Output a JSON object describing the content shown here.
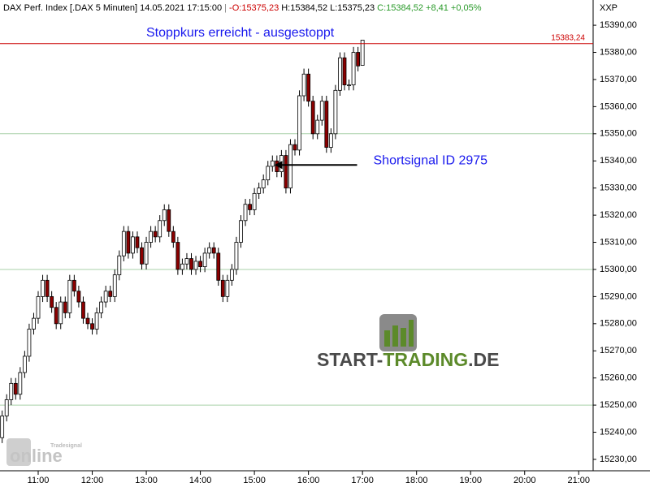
{
  "chart_data": {
    "type": "candlestick",
    "header": {
      "instrument": "DAX Perf. Index [.DAX  5 Minuten] 14.05.2021  17:15:00",
      "open": "-O:15375,23",
      "high": "H:15384,52",
      "low": "L:15375,23",
      "close": "C:15384,52",
      "change": "+8,41",
      "change_pct": "+0,05%"
    },
    "axis_label": "XXP",
    "x": [
      620,
      625,
      630,
      635,
      640,
      645,
      650,
      655,
      660,
      665,
      670,
      675,
      680,
      685,
      690,
      695,
      700,
      705,
      710,
      715,
      720,
      725,
      730,
      735,
      740,
      745,
      750,
      755,
      760,
      765,
      770,
      775,
      780,
      785,
      790,
      795,
      800,
      805,
      810,
      815,
      820,
      825,
      830,
      835,
      840,
      845,
      850,
      855,
      860,
      865,
      870,
      875,
      880,
      885,
      890,
      895,
      900,
      905,
      910,
      915,
      920,
      925,
      930,
      935,
      940,
      945,
      950,
      955,
      960,
      965,
      970,
      975,
      980,
      985,
      990,
      995,
      1000,
      1005,
      1010,
      1015,
      1020
    ],
    "open": [
      15238,
      15246,
      15252,
      15258,
      15254,
      15262,
      15268,
      15278,
      15282,
      15290,
      15296,
      15290,
      15286,
      15280,
      15288,
      15284,
      15296,
      15292,
      15288,
      15282,
      15280,
      15278,
      15284,
      15288,
      15292,
      15290,
      15298,
      15305,
      15314,
      15306,
      15312,
      15308,
      15302,
      15310,
      15314,
      15312,
      15318,
      15322,
      15314,
      15310,
      15300,
      15302,
      15304,
      15300,
      15303,
      15301,
      15306,
      15308,
      15306,
      15296,
      15290,
      15296,
      15300,
      15310,
      15318,
      15324,
      15322,
      15328,
      15330,
      15333,
      15338,
      15340,
      15336,
      15342,
      15330,
      15346,
      15344,
      15364,
      15372,
      15362,
      15350,
      15355,
      15362,
      15345,
      15350,
      15366,
      15378,
      15368,
      15368,
      15380,
      15375.23
    ],
    "high": [
      15248,
      15254,
      15260,
      15260,
      15264,
      15270,
      15280,
      15284,
      15292,
      15298,
      15298,
      15292,
      15288,
      15290,
      15290,
      15298,
      15298,
      15294,
      15290,
      15284,
      15282,
      15286,
      15290,
      15294,
      15294,
      15300,
      15307,
      15316,
      15316,
      15314,
      15314,
      15310,
      15312,
      15316,
      15316,
      15320,
      15324,
      15324,
      15316,
      15312,
      15304,
      15306,
      15306,
      15305,
      15305,
      15308,
      15310,
      15310,
      15308,
      15298,
      15298,
      15302,
      15312,
      15320,
      15326,
      15326,
      15330,
      15332,
      15335,
      15340,
      15342,
      15342,
      15344,
      15344,
      15348,
      15348,
      15366,
      15374,
      15374,
      15364,
      15357,
      15364,
      15364,
      15352,
      15368,
      15380,
      15380,
      15370,
      15382,
      15382,
      15384.52
    ],
    "low": [
      15236,
      15244,
      15250,
      15252,
      15252,
      15260,
      15266,
      15276,
      15280,
      15288,
      15288,
      15284,
      15278,
      15278,
      15282,
      15282,
      15290,
      15286,
      15280,
      15278,
      15276,
      15276,
      15282,
      15286,
      15288,
      15288,
      15296,
      15303,
      15304,
      15304,
      15306,
      15300,
      15300,
      15308,
      15310,
      15310,
      15316,
      15312,
      15308,
      15298,
      15298,
      15300,
      15298,
      15298,
      15299,
      15299,
      15304,
      15304,
      15294,
      15288,
      15288,
      15294,
      15298,
      15308,
      15316,
      15320,
      15320,
      15326,
      15328,
      15331,
      15336,
      15334,
      15334,
      15328,
      15328,
      15342,
      15342,
      15362,
      15360,
      15348,
      15348,
      15353,
      15343,
      15343,
      15348,
      15364,
      15366,
      15366,
      15366,
      15373,
      15375.23
    ],
    "close": [
      15246,
      15252,
      15258,
      15254,
      15262,
      15268,
      15278,
      15282,
      15290,
      15296,
      15290,
      15286,
      15280,
      15288,
      15284,
      15296,
      15292,
      15288,
      15282,
      15280,
      15278,
      15284,
      15288,
      15292,
      15290,
      15298,
      15305,
      15314,
      15306,
      15312,
      15308,
      15302,
      15310,
      15314,
      15312,
      15318,
      15322,
      15314,
      15310,
      15300,
      15302,
      15304,
      15300,
      15303,
      15301,
      15306,
      15308,
      15306,
      15296,
      15290,
      15296,
      15300,
      15310,
      15318,
      15324,
      15322,
      15328,
      15330,
      15333,
      15338,
      15340,
      15336,
      15342,
      15330,
      15346,
      15344,
      15364,
      15372,
      15362,
      15350,
      15355,
      15362,
      15345,
      15350,
      15366,
      15378,
      15368,
      15368,
      15380,
      15375,
      15384.52
    ],
    "up_color": "#ffffff",
    "down_color": "#8b0000",
    "xlim": [
      617.6,
      1276
    ],
    "xticks": [
      {
        "value": 660,
        "label": "11:00"
      },
      {
        "value": 720,
        "label": "12:00"
      },
      {
        "value": 780,
        "label": "13:00"
      },
      {
        "value": 840,
        "label": "14:00"
      },
      {
        "value": 900,
        "label": "15:00"
      },
      {
        "value": 960,
        "label": "16:00"
      },
      {
        "value": 1020,
        "label": "17:00"
      },
      {
        "value": 1080,
        "label": "18:00"
      },
      {
        "value": 1140,
        "label": "19:00"
      },
      {
        "value": 1200,
        "label": "20:00"
      },
      {
        "value": 1260,
        "label": "21:00"
      }
    ],
    "ylim": [
      15225.8,
      15399.3
    ],
    "yticks": [
      {
        "value": 15230,
        "label": "15230,00"
      },
      {
        "value": 15240,
        "label": "15240,00"
      },
      {
        "value": 15250,
        "label": "15250,00"
      },
      {
        "value": 15260,
        "label": "15260,00"
      },
      {
        "value": 15270,
        "label": "15270,00"
      },
      {
        "value": 15280,
        "label": "15280,00"
      },
      {
        "value": 15290,
        "label": "15290,00"
      },
      {
        "value": 15300,
        "label": "15300,00"
      },
      {
        "value": 15310,
        "label": "15310,00"
      },
      {
        "value": 15320,
        "label": "15320,00"
      },
      {
        "value": 15330,
        "label": "15330,00"
      },
      {
        "value": 15340,
        "label": "15340,00"
      },
      {
        "value": 15350,
        "label": "15350,00"
      },
      {
        "value": 15360,
        "label": "15360,00"
      },
      {
        "value": 15370,
        "label": "15370,00"
      },
      {
        "value": 15380,
        "label": "15380,00"
      },
      {
        "value": 15390,
        "label": "15390,00"
      }
    ],
    "grid_lines": [
      15250,
      15300,
      15350
    ],
    "grid_color": "#a8d0a8",
    "stop_line": {
      "text": "Stoppkurs erreicht - ausgestoppt",
      "value": 15383.24,
      "label": "15383,24",
      "color": "#cc0000"
    },
    "signal": {
      "text": "Shortsignal ID 2975",
      "x": 922,
      "y": 15338.5
    },
    "watermark": [
      "START-",
      "TRADING",
      ".DE"
    ],
    "logo": {
      "brand": "Tradesignal",
      "product": "online"
    }
  }
}
